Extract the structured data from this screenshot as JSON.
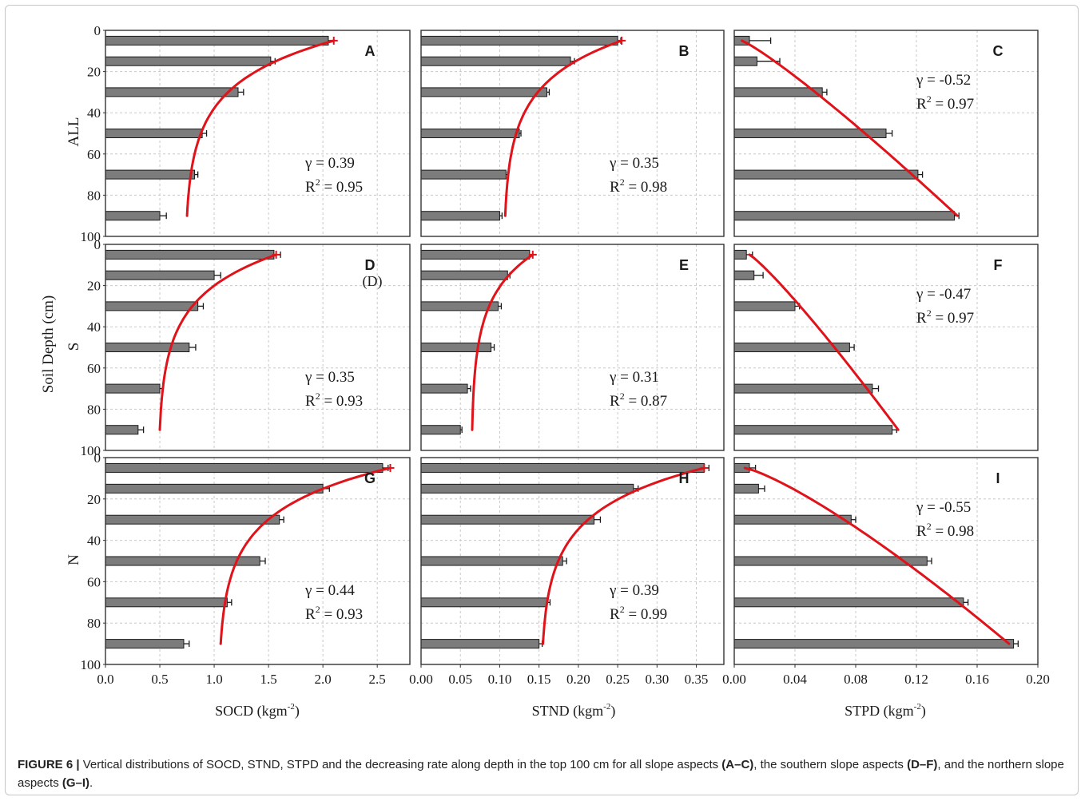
{
  "figure": {
    "shared_ylabel": "Soil Depth (cm)",
    "row_labels": [
      "ALL",
      "S",
      "N"
    ],
    "columns": [
      {
        "xlabel_main": "SOCD (kgm",
        "xlabel_sup": "-2",
        "xlabel_end": ")",
        "xlim": [
          0,
          2.8
        ],
        "ticks": [
          0,
          0.5,
          1.0,
          1.5,
          2.0,
          2.5
        ],
        "tick_labels": [
          "0.0",
          "0.5",
          "1.0",
          "1.5",
          "2.0",
          "2.5"
        ]
      },
      {
        "xlabel_main": "STND (kgm",
        "xlabel_sup": "-2",
        "xlabel_end": ")",
        "xlim": [
          0,
          0.385
        ],
        "ticks": [
          0,
          0.05,
          0.1,
          0.15,
          0.2,
          0.25,
          0.3,
          0.35
        ],
        "tick_labels": [
          "0.00",
          "0.05",
          "0.10",
          "0.15",
          "0.20",
          "0.25",
          "0.30",
          "0.35"
        ]
      },
      {
        "xlabel_main": "STPD (kgm",
        "xlabel_sup": "-2",
        "xlabel_end": ")",
        "xlim": [
          0,
          0.2
        ],
        "ticks": [
          0,
          0.04,
          0.08,
          0.12,
          0.16,
          0.2
        ],
        "tick_labels": [
          "0.00",
          "0.04",
          "0.08",
          "0.12",
          "0.16",
          "0.20"
        ]
      }
    ],
    "y_ticks": [
      0,
      20,
      40,
      60,
      80,
      100
    ],
    "y_tick_labels": [
      "0",
      "20",
      "40",
      "60",
      "80",
      "100"
    ]
  },
  "chart_data": [
    {
      "panel": "A",
      "type": "bar",
      "row": "ALL",
      "column": "SOCD",
      "depth": [
        5,
        15,
        30,
        50,
        70,
        90
      ],
      "values": [
        2.05,
        1.52,
        1.22,
        0.89,
        0.82,
        0.5
      ],
      "errors": [
        0.05,
        0.04,
        0.05,
        0.04,
        0.03,
        0.06
      ],
      "fit": {
        "top": 2.1,
        "bottom": 0.75,
        "gamma": "γ = 0.39",
        "r2_prefix": "R",
        "r2_value": " = 0.95"
      },
      "extra_label": "",
      "xlim": [
        0,
        2.8
      ],
      "ylim": [
        0,
        100
      ]
    },
    {
      "panel": "B",
      "type": "bar",
      "row": "ALL",
      "column": "STND",
      "depth": [
        5,
        15,
        30,
        50,
        70,
        90
      ],
      "values": [
        0.25,
        0.19,
        0.16,
        0.125,
        0.108,
        0.1
      ],
      "errors": [
        0.004,
        0.005,
        0.003,
        0.002,
        0.002,
        0.003
      ],
      "fit": {
        "top": 0.255,
        "bottom": 0.107,
        "gamma": "γ = 0.35",
        "r2_prefix": "R",
        "r2_value": " = 0.98"
      },
      "extra_label": "",
      "xlim": [
        0,
        0.385
      ],
      "ylim": [
        0,
        100
      ]
    },
    {
      "panel": "C",
      "type": "bar",
      "row": "ALL",
      "column": "STPD",
      "depth": [
        5,
        15,
        30,
        50,
        70,
        90
      ],
      "values": [
        0.01,
        0.015,
        0.058,
        0.1,
        0.121,
        0.145
      ],
      "errors": [
        0.014,
        0.015,
        0.003,
        0.004,
        0.003,
        0.003
      ],
      "fit": {
        "top": 0.005,
        "bottom": 0.147,
        "gamma": "γ = -0.52",
        "r2_prefix": "R",
        "r2_value": " = 0.97"
      },
      "extra_label": "",
      "xlim": [
        0,
        0.2
      ],
      "ylim": [
        0,
        100
      ]
    },
    {
      "panel": "D",
      "type": "bar",
      "row": "S",
      "column": "SOCD",
      "depth": [
        5,
        15,
        30,
        50,
        70,
        90
      ],
      "values": [
        1.55,
        1.0,
        0.85,
        0.77,
        0.5,
        0.3
      ],
      "errors": [
        0.06,
        0.06,
        0.05,
        0.06,
        0.03,
        0.05
      ],
      "fit": {
        "top": 1.57,
        "bottom": 0.5,
        "gamma": "γ = 0.35",
        "r2_prefix": "R",
        "r2_value": " = 0.93"
      },
      "extra_label": "(D)",
      "xlim": [
        0,
        2.8
      ],
      "ylim": [
        0,
        100
      ]
    },
    {
      "panel": "E",
      "type": "bar",
      "row": "S",
      "column": "STND",
      "depth": [
        5,
        15,
        30,
        50,
        70,
        90
      ],
      "values": [
        0.138,
        0.11,
        0.098,
        0.089,
        0.059,
        0.05
      ],
      "errors": [
        0.004,
        0.003,
        0.004,
        0.004,
        0.004,
        0.002
      ],
      "fit": {
        "top": 0.142,
        "bottom": 0.065,
        "gamma": "γ = 0.31",
        "r2_prefix": "R",
        "r2_value": " = 0.87"
      },
      "extra_label": "",
      "xlim": [
        0,
        0.385
      ],
      "ylim": [
        0,
        100
      ]
    },
    {
      "panel": "F",
      "type": "bar",
      "row": "S",
      "column": "STPD",
      "depth": [
        5,
        15,
        30,
        50,
        70,
        90
      ],
      "values": [
        0.008,
        0.013,
        0.04,
        0.076,
        0.091,
        0.104
      ],
      "errors": [
        0.004,
        0.006,
        0.003,
        0.003,
        0.004,
        0.003
      ],
      "fit": {
        "top": 0.01,
        "bottom": 0.108,
        "gamma": "γ = -0.47",
        "r2_prefix": "R",
        "r2_value": " = 0.97"
      },
      "extra_label": "",
      "xlim": [
        0,
        0.2
      ],
      "ylim": [
        0,
        100
      ]
    },
    {
      "panel": "G",
      "type": "bar",
      "row": "N",
      "column": "SOCD",
      "depth": [
        5,
        15,
        30,
        50,
        70,
        90
      ],
      "values": [
        2.55,
        2.0,
        1.6,
        1.42,
        1.12,
        0.72
      ],
      "errors": [
        0.05,
        0.06,
        0.04,
        0.05,
        0.04,
        0.05
      ],
      "fit": {
        "top": 2.62,
        "bottom": 1.06,
        "gamma": "γ = 0.44",
        "r2_prefix": "R",
        "r2_value": " = 0.93"
      },
      "extra_label": "",
      "xlim": [
        0,
        2.8
      ],
      "ylim": [
        0,
        100
      ]
    },
    {
      "panel": "H",
      "type": "bar",
      "row": "N",
      "column": "STND",
      "depth": [
        5,
        15,
        30,
        50,
        70,
        90
      ],
      "values": [
        0.36,
        0.27,
        0.22,
        0.18,
        0.16,
        0.15
      ],
      "errors": [
        0.006,
        0.006,
        0.008,
        0.005,
        0.004,
        0.004
      ],
      "fit": {
        "top": 0.36,
        "bottom": 0.155,
        "gamma": "γ = 0.39",
        "r2_prefix": "R",
        "r2_value": " = 0.99"
      },
      "extra_label": "",
      "xlim": [
        0,
        0.385
      ],
      "ylim": [
        0,
        100
      ]
    },
    {
      "panel": "I",
      "type": "bar",
      "row": "N",
      "column": "STPD",
      "depth": [
        5,
        15,
        30,
        50,
        70,
        90
      ],
      "values": [
        0.01,
        0.016,
        0.077,
        0.127,
        0.151,
        0.184
      ],
      "errors": [
        0.004,
        0.004,
        0.003,
        0.003,
        0.003,
        0.003
      ],
      "fit": {
        "top": 0.007,
        "bottom": 0.181,
        "gamma": "γ = -0.55",
        "r2_prefix": "R",
        "r2_value": " = 0.98"
      },
      "extra_label": "",
      "xlim": [
        0,
        0.2
      ],
      "ylim": [
        0,
        100
      ]
    }
  ],
  "caption": {
    "label": "FIGURE 6 |",
    "t1": " Vertical distributions of SOCD, STND, STPD and the decreasing rate along depth in the top 100 cm for all slope aspects ",
    "b1": "(A–C)",
    "t2": ", the southern slope aspects ",
    "b2": "(D–F)",
    "t3": ", and the northern slope aspects ",
    "b3": "(G–I)",
    "t4": "."
  },
  "colors": {
    "bar": "#7c7c7c",
    "bar_edge": "#1a1a1a",
    "fit": "#e0121a",
    "grid": "#c8c8c8",
    "axis": "#333333"
  }
}
